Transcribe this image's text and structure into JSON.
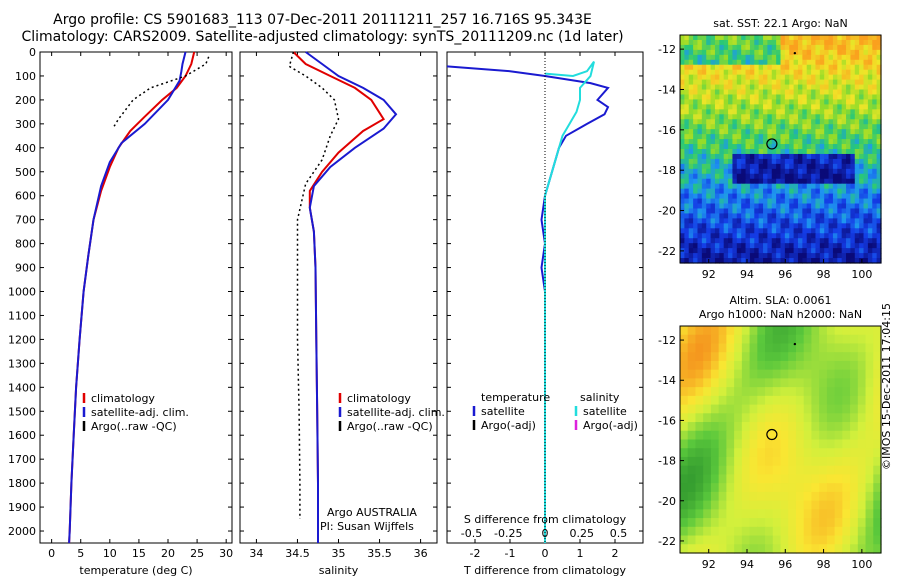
{
  "titles": {
    "line1": "Argo profile: CS 5901683_113 07-Dec-2011 20111211_257 16.716S 95.343E",
    "line2": "Climatology: CARS2009. Satellite-adjusted climatology: synTS_20111209.nc (1d later)"
  },
  "stamp": "©IMOS 15-Dec-2011 17:04:15",
  "colors": {
    "climatology": "#e00000",
    "satellite": "#1a1ad0",
    "argo": "#000000",
    "salinity_satellite": "#22dddd",
    "salinity_argo": "#dd22dd"
  },
  "chart_data": [
    {
      "type": "line",
      "xlabel": "temperature (deg C)",
      "ylabel": "",
      "xlim": [
        -2,
        31
      ],
      "ylim": [
        2050,
        0
      ],
      "x_ticks": [
        0,
        5,
        10,
        15,
        20,
        25,
        30
      ],
      "y_ticks": [
        0,
        100,
        200,
        300,
        400,
        500,
        600,
        700,
        800,
        900,
        1000,
        1100,
        1200,
        1300,
        1400,
        1500,
        1600,
        1700,
        1800,
        1900,
        2000
      ],
      "legend": [
        "climatology",
        "satellite-adj. clim.",
        "Argo(..raw -QC)"
      ],
      "series": [
        {
          "name": "climatology",
          "style": "solid",
          "color": "#e00000",
          "points": [
            [
              24.5,
              0
            ],
            [
              24,
              50
            ],
            [
              23,
              100
            ],
            [
              21.5,
              150
            ],
            [
              19,
              200
            ],
            [
              16,
              270
            ],
            [
              13.5,
              330
            ],
            [
              11.5,
              400
            ],
            [
              10,
              480
            ],
            [
              8.5,
              580
            ],
            [
              7.2,
              700
            ],
            [
              6.3,
              850
            ],
            [
              5.5,
              1000
            ],
            [
              4.8,
              1200
            ],
            [
              4.2,
              1400
            ],
            [
              3.8,
              1600
            ],
            [
              3.4,
              1800
            ],
            [
              3.1,
              2000
            ],
            [
              3,
              2050
            ]
          ]
        },
        {
          "name": "satellite-adj. clim.",
          "style": "solid",
          "color": "#1a1ad0",
          "points": [
            [
              23,
              0
            ],
            [
              22.5,
              50
            ],
            [
              22.3,
              80
            ],
            [
              22,
              120
            ],
            [
              20,
              200
            ],
            [
              16,
              300
            ],
            [
              12,
              380
            ],
            [
              10,
              460
            ],
            [
              8.5,
              560
            ],
            [
              7.2,
              700
            ],
            [
              6.3,
              850
            ],
            [
              5.5,
              1000
            ],
            [
              4.8,
              1200
            ],
            [
              4.2,
              1400
            ],
            [
              3.8,
              1600
            ],
            [
              3.4,
              1800
            ],
            [
              3.1,
              2000
            ],
            [
              3,
              2050
            ]
          ]
        },
        {
          "name": "Argo(..raw -QC)",
          "style": "dotted",
          "color": "#000000",
          "points": [
            [
              27,
              20
            ],
            [
              26.5,
              50
            ],
            [
              23,
              100
            ],
            [
              17,
              150
            ],
            [
              14,
              200
            ],
            [
              11.5,
              280
            ],
            [
              10.5,
              320
            ]
          ]
        }
      ]
    },
    {
      "type": "line",
      "xlabel": "salinity",
      "ylabel": "",
      "xlim": [
        33.8,
        36.2
      ],
      "ylim": [
        2050,
        0
      ],
      "x_ticks": [
        34,
        34.5,
        35,
        35.5,
        36
      ],
      "legend": [
        "climatology",
        "satellite-adj. clim.",
        "Argo(..raw -QC)"
      ],
      "annotations": [
        "Argo AUSTRALIA",
        "PI: Susan Wijffels"
      ],
      "series": [
        {
          "name": "climatology",
          "style": "solid",
          "color": "#e00000",
          "points": [
            [
              34.45,
              0
            ],
            [
              34.6,
              50
            ],
            [
              34.9,
              100
            ],
            [
              35.2,
              150
            ],
            [
              35.4,
              200
            ],
            [
              35.55,
              280
            ],
            [
              35.3,
              330
            ],
            [
              35,
              420
            ],
            [
              34.8,
              500
            ],
            [
              34.65,
              580
            ],
            [
              34.65,
              650
            ],
            [
              34.7,
              750
            ],
            [
              34.72,
              900
            ],
            [
              34.73,
              1200
            ],
            [
              34.74,
              1500
            ],
            [
              34.75,
              1800
            ],
            [
              34.75,
              2050
            ]
          ]
        },
        {
          "name": "satellite-adj. clim.",
          "style": "solid",
          "color": "#1a1ad0",
          "points": [
            [
              34.6,
              0
            ],
            [
              34.8,
              50
            ],
            [
              35,
              100
            ],
            [
              35.3,
              150
            ],
            [
              35.55,
              200
            ],
            [
              35.7,
              260
            ],
            [
              35.55,
              320
            ],
            [
              35.2,
              400
            ],
            [
              34.9,
              480
            ],
            [
              34.7,
              560
            ],
            [
              34.65,
              650
            ],
            [
              34.7,
              750
            ],
            [
              34.72,
              900
            ],
            [
              34.73,
              1200
            ],
            [
              34.74,
              1500
            ],
            [
              34.75,
              1800
            ],
            [
              34.75,
              2050
            ]
          ]
        },
        {
          "name": "Argo(..raw -QC)",
          "style": "dotted",
          "color": "#000000",
          "points": [
            [
              34.45,
              0
            ],
            [
              34.4,
              60
            ],
            [
              34.6,
              100
            ],
            [
              34.8,
              150
            ],
            [
              34.95,
              200
            ],
            [
              35,
              280
            ],
            [
              34.9,
              350
            ],
            [
              34.8,
              450
            ],
            [
              34.6,
              550
            ],
            [
              34.5,
              700
            ],
            [
              34.5,
              900
            ],
            [
              34.5,
              1200
            ],
            [
              34.52,
              1500
            ],
            [
              34.53,
              1800
            ],
            [
              34.53,
              1950
            ]
          ]
        }
      ]
    },
    {
      "type": "line",
      "xlabel": "T difference from climatology",
      "top_axis_label": "S difference from climatology",
      "ylabel": "",
      "xlim": [
        -2.8,
        2.8
      ],
      "ylim": [
        2050,
        0
      ],
      "x_ticks": [
        -2,
        -1,
        0,
        1,
        2
      ],
      "top_ticks": [
        "-0.5",
        "-0.25",
        "0",
        "0.25",
        "0.5"
      ],
      "legend_headers": [
        "temperature",
        "salinity"
      ],
      "legend_left": [
        "satellite",
        "Argo(-adj)"
      ],
      "legend_right": [
        "satellite",
        "Argo(-adj)"
      ],
      "series": [
        {
          "name": "temperature satellite",
          "style": "solid",
          "color": "#1a1ad0",
          "points": [
            [
              -2.8,
              60
            ],
            [
              -1,
              80
            ],
            [
              0,
              100
            ],
            [
              1.3,
              130
            ],
            [
              1.8,
              150
            ],
            [
              1.5,
              200
            ],
            [
              1.8,
              230
            ],
            [
              1.7,
              260
            ],
            [
              1.2,
              300
            ],
            [
              0.6,
              350
            ],
            [
              0.4,
              400
            ],
            [
              0.2,
              500
            ],
            [
              0,
              600
            ],
            [
              -0.1,
              700
            ],
            [
              0,
              800
            ],
            [
              -0.1,
              900
            ],
            [
              0,
              1000
            ],
            [
              0,
              1200
            ],
            [
              0,
              1500
            ],
            [
              0,
              2050
            ]
          ]
        },
        {
          "name": "salinity satellite",
          "style": "solid",
          "color": "#22dddd",
          "points": [
            [
              0,
              90
            ],
            [
              0.8,
              100
            ],
            [
              1.2,
              80
            ],
            [
              1.4,
              40
            ],
            [
              1.3,
              100
            ],
            [
              1.0,
              150
            ],
            [
              1.0,
              200
            ],
            [
              0.9,
              250
            ],
            [
              0.7,
              300
            ],
            [
              0.5,
              350
            ],
            [
              0.4,
              400
            ],
            [
              0.2,
              500
            ],
            [
              0,
              600
            ],
            [
              0,
              700
            ],
            [
              0,
              1000
            ],
            [
              0,
              1500
            ],
            [
              0,
              2050
            ]
          ]
        }
      ]
    },
    {
      "type": "heatmap",
      "title": "sat. SST: 22.1  Argo: NaN",
      "x_ticks": [
        92,
        94,
        96,
        98,
        100
      ],
      "y_ticks": [
        -12,
        -14,
        -16,
        -18,
        -20,
        -22
      ],
      "xlim": [
        90.5,
        101
      ],
      "ylim": [
        -22.6,
        -11.3
      ],
      "marker_circle": [
        95.3,
        -16.7
      ],
      "marker_dot": [
        96.5,
        -12.2
      ]
    },
    {
      "type": "heatmap",
      "title": "Altim. SLA: 0.0061",
      "subtitle": "Argo h1000: NaN h2000: NaN",
      "x_ticks": [
        92,
        94,
        96,
        98,
        100
      ],
      "y_ticks": [
        -12,
        -14,
        -16,
        -18,
        -20,
        -22
      ],
      "xlim": [
        90.5,
        101
      ],
      "ylim": [
        -22.6,
        -11.3
      ],
      "marker_circle": [
        95.3,
        -16.7
      ],
      "marker_dot": [
        96.5,
        -12.2
      ]
    }
  ]
}
